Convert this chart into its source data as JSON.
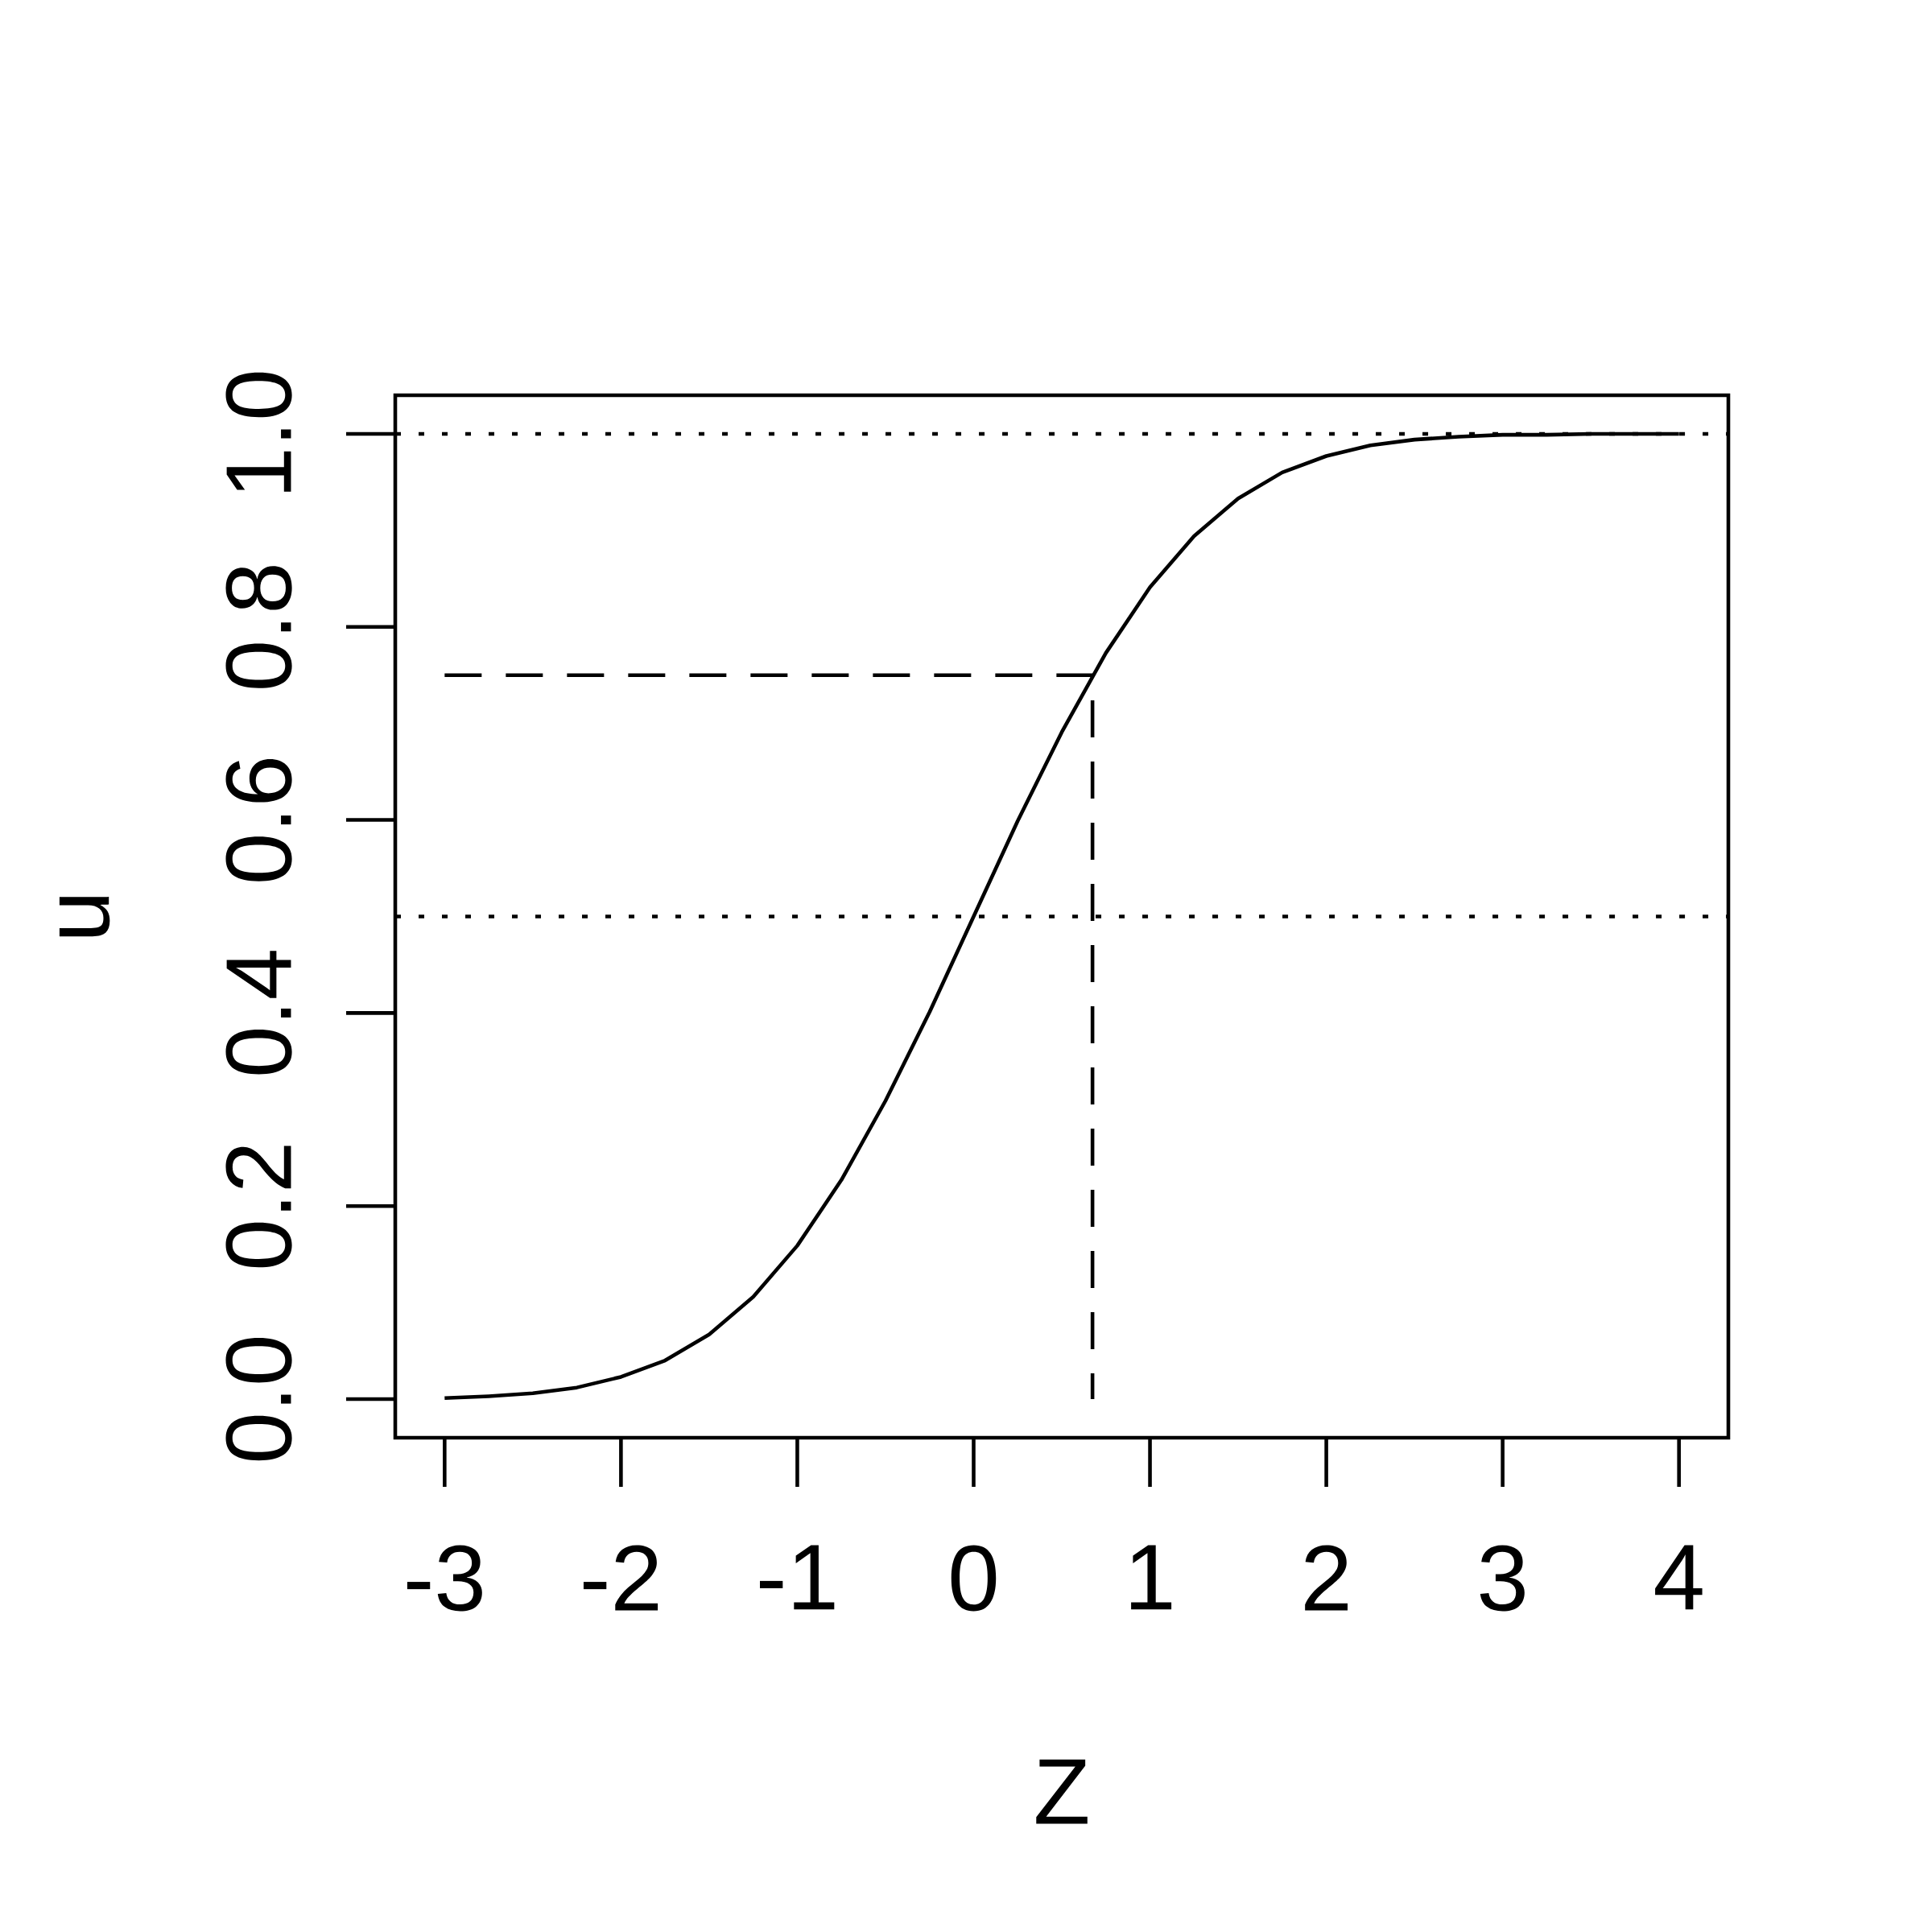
{
  "chart_data": {
    "type": "line",
    "xlabel": "Z",
    "ylabel": "u",
    "xlim": [
      -3.28,
      4.28
    ],
    "ylim": [
      -0.04,
      1.04
    ],
    "xticks": [
      -3,
      -2,
      -1,
      0,
      1,
      2,
      3,
      4
    ],
    "yticks": [
      {
        "value": 0,
        "label": "0.0"
      },
      0.2,
      0.4,
      0.6,
      0.8,
      {
        "value": 1,
        "label": "1.0"
      }
    ],
    "series": [
      {
        "color": "#000000",
        "line_style": "solid",
        "x": [
          -3,
          -2.75,
          -2.5,
          -2.25,
          -2,
          -1.75,
          -1.5,
          -1.25,
          -1,
          -0.75,
          -0.5,
          -0.25,
          0,
          0.25,
          0.5,
          0.75,
          1,
          1.25,
          1.5,
          1.75,
          2,
          2.25,
          2.5,
          2.75,
          3,
          3.25,
          3.5,
          3.75,
          4
        ],
        "values": [
          0.001,
          0.003,
          0.006,
          0.012,
          0.023,
          0.04,
          0.067,
          0.106,
          0.159,
          0.227,
          0.309,
          0.401,
          0.5,
          0.599,
          0.691,
          0.773,
          0.841,
          0.894,
          0.933,
          0.96,
          0.977,
          0.988,
          0.994,
          0.997,
          0.999,
          0.999,
          1.0,
          1.0,
          1.0
        ]
      },
      {
        "color": "#000000",
        "line_style": "dashed",
        "x": [
          -3,
          0.674,
          0.674
        ],
        "values": [
          0.75,
          0.75,
          0
        ]
      }
    ],
    "ref_lines": [
      {
        "axis": "y",
        "value": 1,
        "line_style": "dotted"
      },
      {
        "axis": "y",
        "value": 0.5,
        "line_style": "dotted"
      }
    ]
  }
}
